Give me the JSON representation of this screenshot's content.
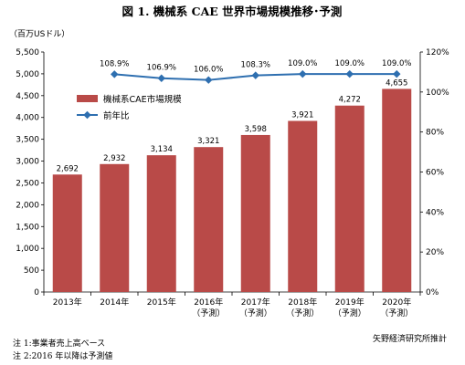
{
  "chart_data": {
    "type": "bar+line",
    "title": "図 1. 機械系 CAE 世界市場規模推移･予測",
    "y_left_unit": "（百万USドル）",
    "y_left_range": [
      0,
      5500
    ],
    "y_left_ticks": [
      "0",
      "500",
      "1,000",
      "1,500",
      "2,000",
      "2,500",
      "3,000",
      "3,500",
      "4,000",
      "4,500",
      "5,000",
      "5,500"
    ],
    "y_right_range": [
      0,
      120
    ],
    "y_right_ticks": [
      "0%",
      "20%",
      "40%",
      "60%",
      "80%",
      "100%",
      "120%"
    ],
    "categories": [
      {
        "year": "2013年",
        "sub": ""
      },
      {
        "year": "2014年",
        "sub": ""
      },
      {
        "year": "2015年",
        "sub": ""
      },
      {
        "year": "2016年",
        "sub": "（予測）"
      },
      {
        "year": "2017年",
        "sub": "（予測）"
      },
      {
        "year": "2018年",
        "sub": "（予測）"
      },
      {
        "year": "2019年",
        "sub": "（予測）"
      },
      {
        "year": "2020年",
        "sub": "（予測）"
      }
    ],
    "series": [
      {
        "name": "機械系CAE市場規模",
        "type": "bar",
        "axis": "left",
        "color": "#b94a48",
        "values": [
          2692,
          2932,
          3134,
          3321,
          3598,
          3921,
          4272,
          4655
        ],
        "labels": [
          "2,692",
          "2,932",
          "3,134",
          "3,321",
          "3,598",
          "3,921",
          "4,272",
          "4,655"
        ]
      },
      {
        "name": "前年比",
        "type": "line",
        "axis": "right",
        "color": "#2e6fb0",
        "values": [
          null,
          108.9,
          106.9,
          106.0,
          108.3,
          109.0,
          109.0,
          109.0
        ],
        "labels": [
          "",
          "108.9%",
          "106.9%",
          "106.0%",
          "108.3%",
          "109.0%",
          "109.0%",
          "109.0%"
        ]
      }
    ],
    "legend_position": "upper-left",
    "grid": false
  },
  "notes": {
    "note1": "注 1:事業者売上高ベース",
    "note2": "注 2:2016 年以降は予測値",
    "source": "矢野経済研究所推計"
  }
}
